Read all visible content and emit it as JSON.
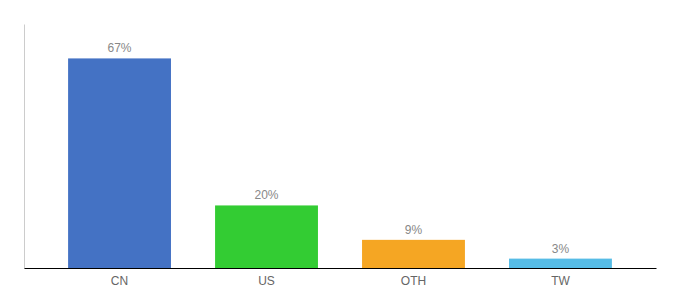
{
  "chart_data": {
    "type": "bar",
    "categories": [
      "CN",
      "US",
      "OTH",
      "TW"
    ],
    "values": [
      67,
      20,
      9,
      3
    ],
    "value_labels": [
      "67%",
      "20%",
      "9%",
      "3%"
    ],
    "colors": [
      "#4472c4",
      "#33cc33",
      "#f5a623",
      "#56bce6"
    ],
    "ylim": [
      0,
      78
    ],
    "grid": false,
    "data_labels": true,
    "tick_labels": "x"
  }
}
